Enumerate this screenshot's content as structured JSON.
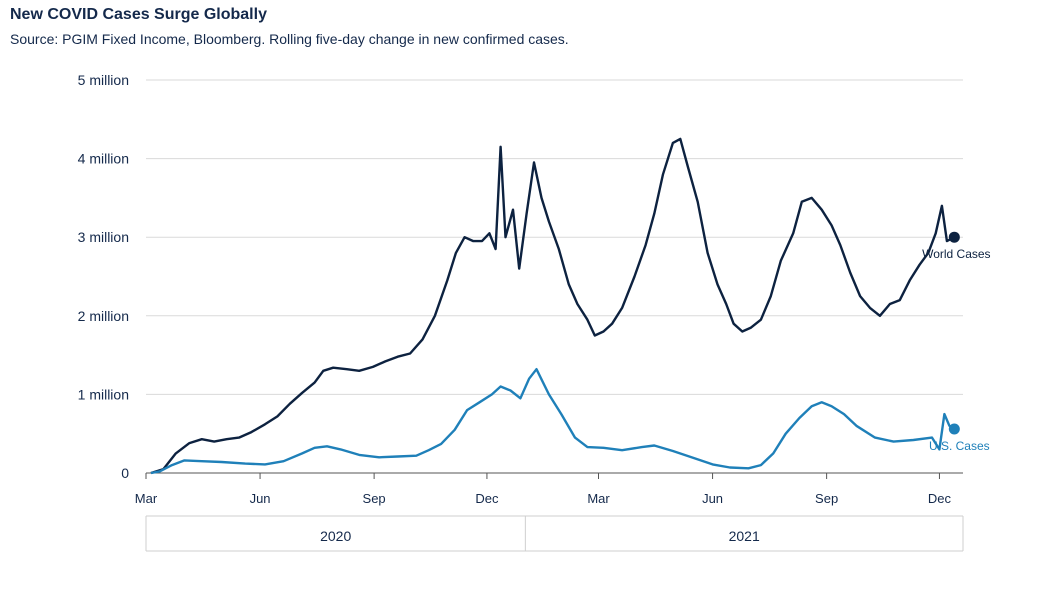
{
  "title": "New COVID Cases Surge Globally",
  "subtitle": "Source: PGIM Fixed Income, Bloomberg. Rolling five-day change in new confirmed cases.",
  "chart_data": {
    "type": "line",
    "title": "New COVID Cases Surge Globally",
    "ylim": [
      0,
      5000000
    ],
    "y_ticks": [
      {
        "value": 0,
        "label": "0"
      },
      {
        "value": 1000000,
        "label": "1 million"
      },
      {
        "value": 2000000,
        "label": "2 million"
      },
      {
        "value": 3000000,
        "label": "3 million"
      },
      {
        "value": 4000000,
        "label": "4 million"
      },
      {
        "value": 5000000,
        "label": "5 million"
      }
    ],
    "x_ticks": [
      {
        "date": "2020-03-01",
        "label": "Mar"
      },
      {
        "date": "2020-06-01",
        "label": "Jun"
      },
      {
        "date": "2020-09-01",
        "label": "Sep"
      },
      {
        "date": "2020-12-01",
        "label": "Dec"
      },
      {
        "date": "2021-03-01",
        "label": "Mar"
      },
      {
        "date": "2021-06-01",
        "label": "Jun"
      },
      {
        "date": "2021-09-01",
        "label": "Sep"
      },
      {
        "date": "2021-12-01",
        "label": "Dec"
      }
    ],
    "years": [
      "2020",
      "2021"
    ],
    "grid": true,
    "series": [
      {
        "name": "World Cases",
        "color": "#0d2240",
        "points": [
          [
            "2020-03-05",
            0
          ],
          [
            "2020-03-15",
            50000
          ],
          [
            "2020-03-25",
            250000
          ],
          [
            "2020-04-05",
            380000
          ],
          [
            "2020-04-15",
            430000
          ],
          [
            "2020-04-25",
            400000
          ],
          [
            "2020-05-05",
            430000
          ],
          [
            "2020-05-15",
            450000
          ],
          [
            "2020-05-25",
            520000
          ],
          [
            "2020-06-05",
            620000
          ],
          [
            "2020-06-15",
            720000
          ],
          [
            "2020-06-25",
            880000
          ],
          [
            "2020-07-05",
            1020000
          ],
          [
            "2020-07-15",
            1150000
          ],
          [
            "2020-07-22",
            1300000
          ],
          [
            "2020-07-30",
            1340000
          ],
          [
            "2020-08-10",
            1320000
          ],
          [
            "2020-08-20",
            1300000
          ],
          [
            "2020-08-31",
            1350000
          ],
          [
            "2020-09-10",
            1420000
          ],
          [
            "2020-09-20",
            1480000
          ],
          [
            "2020-09-30",
            1520000
          ],
          [
            "2020-10-10",
            1700000
          ],
          [
            "2020-10-20",
            2000000
          ],
          [
            "2020-10-30",
            2450000
          ],
          [
            "2020-11-06",
            2800000
          ],
          [
            "2020-11-13",
            3000000
          ],
          [
            "2020-11-20",
            2950000
          ],
          [
            "2020-11-27",
            2950000
          ],
          [
            "2020-12-03",
            3050000
          ],
          [
            "2020-12-08",
            2850000
          ],
          [
            "2020-12-12",
            4150000
          ],
          [
            "2020-12-16",
            3000000
          ],
          [
            "2020-12-22",
            3350000
          ],
          [
            "2020-12-27",
            2600000
          ],
          [
            "2021-01-02",
            3300000
          ],
          [
            "2021-01-08",
            3950000
          ],
          [
            "2021-01-14",
            3500000
          ],
          [
            "2021-01-20",
            3200000
          ],
          [
            "2021-01-28",
            2850000
          ],
          [
            "2021-02-05",
            2400000
          ],
          [
            "2021-02-12",
            2150000
          ],
          [
            "2021-02-20",
            1950000
          ],
          [
            "2021-02-26",
            1750000
          ],
          [
            "2021-03-05",
            1800000
          ],
          [
            "2021-03-12",
            1900000
          ],
          [
            "2021-03-20",
            2100000
          ],
          [
            "2021-03-30",
            2500000
          ],
          [
            "2021-04-08",
            2900000
          ],
          [
            "2021-04-15",
            3300000
          ],
          [
            "2021-04-22",
            3800000
          ],
          [
            "2021-04-30",
            4200000
          ],
          [
            "2021-05-06",
            4250000
          ],
          [
            "2021-05-12",
            3900000
          ],
          [
            "2021-05-20",
            3450000
          ],
          [
            "2021-05-28",
            2800000
          ],
          [
            "2021-06-05",
            2400000
          ],
          [
            "2021-06-12",
            2150000
          ],
          [
            "2021-06-18",
            1900000
          ],
          [
            "2021-06-25",
            1800000
          ],
          [
            "2021-07-02",
            1850000
          ],
          [
            "2021-07-10",
            1950000
          ],
          [
            "2021-07-18",
            2250000
          ],
          [
            "2021-07-26",
            2700000
          ],
          [
            "2021-08-05",
            3050000
          ],
          [
            "2021-08-12",
            3450000
          ],
          [
            "2021-08-20",
            3500000
          ],
          [
            "2021-08-28",
            3350000
          ],
          [
            "2021-09-05",
            3150000
          ],
          [
            "2021-09-12",
            2900000
          ],
          [
            "2021-09-20",
            2550000
          ],
          [
            "2021-09-28",
            2250000
          ],
          [
            "2021-10-06",
            2100000
          ],
          [
            "2021-10-14",
            2000000
          ],
          [
            "2021-10-22",
            2150000
          ],
          [
            "2021-10-30",
            2200000
          ],
          [
            "2021-11-07",
            2450000
          ],
          [
            "2021-11-15",
            2650000
          ],
          [
            "2021-11-22",
            2800000
          ],
          [
            "2021-11-28",
            3050000
          ],
          [
            "2021-12-03",
            3400000
          ],
          [
            "2021-12-07",
            2950000
          ],
          [
            "2021-12-13",
            3000000
          ]
        ]
      },
      {
        "name": "U.S. Cases",
        "color": "#1f80b9",
        "points": [
          [
            "2020-03-05",
            0
          ],
          [
            "2020-03-12",
            20000
          ],
          [
            "2020-03-22",
            100000
          ],
          [
            "2020-04-01",
            160000
          ],
          [
            "2020-04-15",
            150000
          ],
          [
            "2020-05-01",
            140000
          ],
          [
            "2020-05-20",
            120000
          ],
          [
            "2020-06-05",
            110000
          ],
          [
            "2020-06-20",
            150000
          ],
          [
            "2020-07-05",
            250000
          ],
          [
            "2020-07-15",
            320000
          ],
          [
            "2020-07-25",
            340000
          ],
          [
            "2020-08-05",
            300000
          ],
          [
            "2020-08-20",
            230000
          ],
          [
            "2020-09-05",
            200000
          ],
          [
            "2020-09-20",
            210000
          ],
          [
            "2020-10-05",
            220000
          ],
          [
            "2020-10-15",
            290000
          ],
          [
            "2020-10-25",
            370000
          ],
          [
            "2020-11-05",
            550000
          ],
          [
            "2020-11-15",
            800000
          ],
          [
            "2020-11-25",
            900000
          ],
          [
            "2020-12-05",
            1000000
          ],
          [
            "2020-12-12",
            1100000
          ],
          [
            "2020-12-20",
            1050000
          ],
          [
            "2020-12-28",
            950000
          ],
          [
            "2021-01-04",
            1200000
          ],
          [
            "2021-01-10",
            1320000
          ],
          [
            "2021-01-20",
            1000000
          ],
          [
            "2021-01-30",
            750000
          ],
          [
            "2021-02-10",
            450000
          ],
          [
            "2021-02-20",
            330000
          ],
          [
            "2021-03-05",
            320000
          ],
          [
            "2021-03-20",
            290000
          ],
          [
            "2021-04-05",
            330000
          ],
          [
            "2021-04-15",
            350000
          ],
          [
            "2021-04-30",
            280000
          ],
          [
            "2021-05-15",
            200000
          ],
          [
            "2021-06-01",
            110000
          ],
          [
            "2021-06-15",
            70000
          ],
          [
            "2021-06-30",
            60000
          ],
          [
            "2021-07-10",
            100000
          ],
          [
            "2021-07-20",
            250000
          ],
          [
            "2021-07-30",
            500000
          ],
          [
            "2021-08-10",
            700000
          ],
          [
            "2021-08-20",
            850000
          ],
          [
            "2021-08-28",
            900000
          ],
          [
            "2021-09-05",
            850000
          ],
          [
            "2021-09-15",
            750000
          ],
          [
            "2021-09-25",
            600000
          ],
          [
            "2021-10-10",
            450000
          ],
          [
            "2021-10-25",
            400000
          ],
          [
            "2021-11-10",
            420000
          ],
          [
            "2021-11-25",
            450000
          ],
          [
            "2021-12-01",
            300000
          ],
          [
            "2021-12-05",
            750000
          ],
          [
            "2021-12-09",
            600000
          ],
          [
            "2021-12-13",
            560000
          ]
        ]
      }
    ]
  }
}
